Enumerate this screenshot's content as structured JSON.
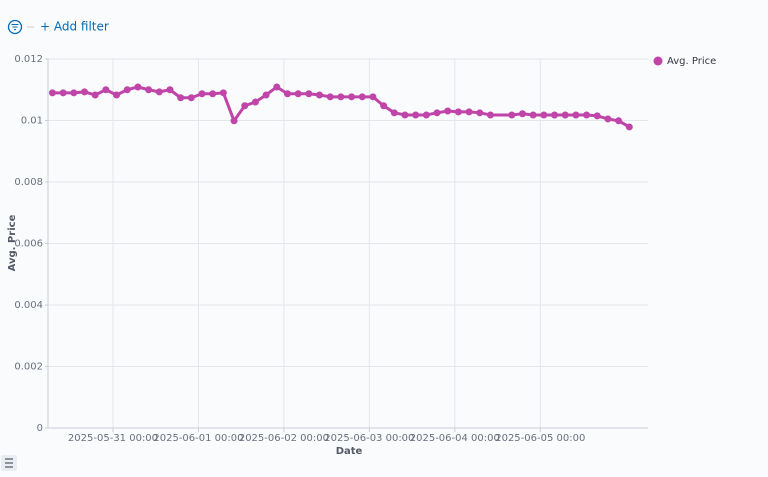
{
  "filter_bar": {
    "add_filter": "+ Add filter"
  },
  "chart_data": {
    "type": "line",
    "x_label": "Date",
    "y_label": "Avg. Price",
    "x": [
      "2025-05-30 07:00",
      "2025-05-30 10:00",
      "2025-05-30 13:00",
      "2025-05-30 16:00",
      "2025-05-30 19:00",
      "2025-05-30 22:00",
      "2025-05-31 01:00",
      "2025-05-31 04:00",
      "2025-05-31 07:00",
      "2025-05-31 10:00",
      "2025-05-31 13:00",
      "2025-05-31 16:00",
      "2025-05-31 19:00",
      "2025-05-31 22:00",
      "2025-06-01 01:00",
      "2025-06-01 04:00",
      "2025-06-01 07:00",
      "2025-06-01 10:00",
      "2025-06-01 13:00",
      "2025-06-01 16:00",
      "2025-06-01 19:00",
      "2025-06-01 22:00",
      "2025-06-02 01:00",
      "2025-06-02 04:00",
      "2025-06-02 07:00",
      "2025-06-02 10:00",
      "2025-06-02 13:00",
      "2025-06-02 16:00",
      "2025-06-02 19:00",
      "2025-06-02 22:00",
      "2025-06-03 01:00",
      "2025-06-03 04:00",
      "2025-06-03 07:00",
      "2025-06-03 10:00",
      "2025-06-03 13:00",
      "2025-06-03 16:00",
      "2025-06-03 19:00",
      "2025-06-03 22:00",
      "2025-06-04 01:00",
      "2025-06-04 04:00",
      "2025-06-04 07:00",
      "2025-06-04 10:00",
      "2025-06-04 16:00",
      "2025-06-04 19:00",
      "2025-06-04 22:00",
      "2025-06-05 01:00",
      "2025-06-05 04:00",
      "2025-06-05 07:00",
      "2025-06-05 10:00",
      "2025-06-05 13:00",
      "2025-06-05 16:00",
      "2025-06-05 19:00",
      "2025-06-05 22:00",
      "2025-06-06 01:00"
    ],
    "series": [
      {
        "name": "Avg. Price",
        "color": "#c045a8",
        "values": [
          0.0109,
          0.0109,
          0.0109,
          0.01093,
          0.01083,
          0.011,
          0.01083,
          0.011,
          0.01109,
          0.011,
          0.01093,
          0.011,
          0.01074,
          0.01074,
          0.01087,
          0.01087,
          0.0109,
          0.00999,
          0.01048,
          0.0106,
          0.01083,
          0.01109,
          0.01087,
          0.01087,
          0.01087,
          0.01083,
          0.01077,
          0.01077,
          0.01077,
          0.01077,
          0.01077,
          0.01048,
          0.01025,
          0.01018,
          0.01018,
          0.01018,
          0.01025,
          0.01031,
          0.01028,
          0.01028,
          0.01025,
          0.01018,
          0.01018,
          0.01022,
          0.01018,
          0.01018,
          0.01018,
          0.01018,
          0.01018,
          0.01018,
          0.01015,
          0.01005,
          0.00999,
          0.00979
        ]
      }
    ],
    "xlim": [
      "2025-05-30 05:45",
      "2025-06-06 06:15"
    ],
    "xticks": [
      "2025-05-31 00:00",
      "2025-06-01 00:00",
      "2025-06-02 00:00",
      "2025-06-03 00:00",
      "2025-06-04 00:00",
      "2025-06-05 00:00"
    ],
    "ylim": [
      0,
      0.012
    ],
    "yticks": [
      0,
      0.002,
      0.004,
      0.006,
      0.008,
      0.01,
      0.012
    ],
    "grid": true,
    "legend": "right"
  }
}
